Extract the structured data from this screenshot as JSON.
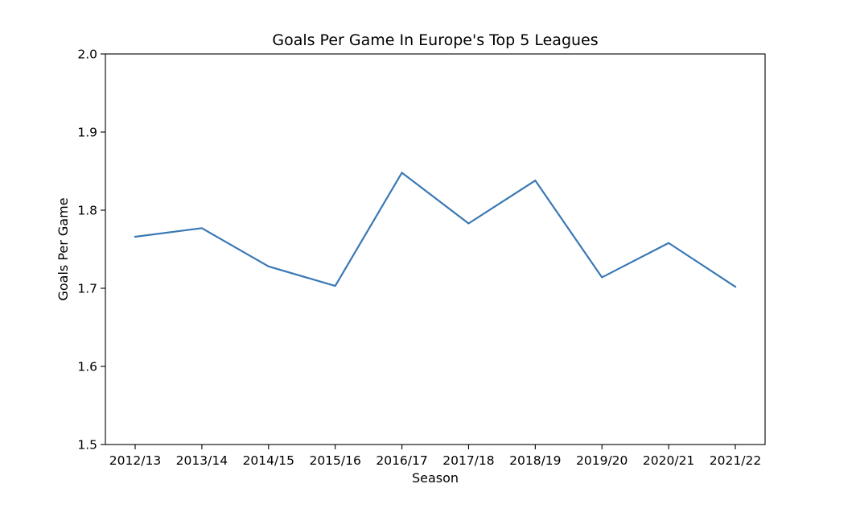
{
  "chart_data": {
    "type": "line",
    "title": "Goals Per Game In Europe's Top 5 Leagues",
    "xlabel": "Season",
    "ylabel": "Goals Per Game",
    "categories": [
      "2012/13",
      "2013/14",
      "2014/15",
      "2015/16",
      "2016/17",
      "2017/18",
      "2018/19",
      "2019/20",
      "2020/21",
      "2021/22"
    ],
    "series": [
      {
        "values": [
          1.766,
          1.777,
          1.728,
          1.703,
          1.848,
          1.783,
          1.838,
          1.714,
          1.758,
          1.702
        ]
      }
    ],
    "ylim": [
      1.5,
      2.0
    ],
    "yticks": [
      "1.5",
      "1.6",
      "1.7",
      "1.8",
      "1.9",
      "2.0"
    ],
    "grid": false,
    "line_color": "#3a78b4"
  }
}
